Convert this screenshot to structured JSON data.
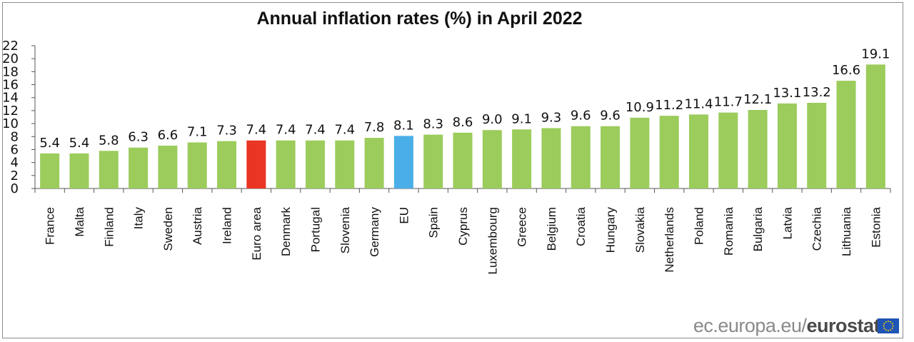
{
  "colors": {
    "default_bar": "#9ccc5c",
    "highlight_euro_area": "#ea3524",
    "highlight_eu": "#4aaee8",
    "axis": "#555555"
  },
  "chart_data": {
    "type": "bar",
    "title": "Annual inflation rates (%) in April 2022",
    "xlabel": "",
    "ylabel": "",
    "ylim": [
      0,
      22
    ],
    "yticks": [
      0,
      2,
      4,
      6,
      8,
      10,
      12,
      14,
      16,
      18,
      20,
      22
    ],
    "grid": false,
    "legend": "none",
    "categories": [
      "France",
      "Malta",
      "Finland",
      "Italy",
      "Sweden",
      "Austria",
      "Ireland",
      "Euro area",
      "Denmark",
      "Portugal",
      "Slovenia",
      "Germany",
      "EU",
      "Spain",
      "Cyprus",
      "Luxembourg",
      "Greece",
      "Belgium",
      "Croatia",
      "Hungary",
      "Slovakia",
      "Netherlands",
      "Poland",
      "Romania",
      "Bulgaria",
      "Latvia",
      "Czechia",
      "Lithuania",
      "Estonia"
    ],
    "values": [
      5.4,
      5.4,
      5.8,
      6.3,
      6.6,
      7.1,
      7.3,
      7.4,
      7.4,
      7.4,
      7.4,
      7.8,
      8.1,
      8.3,
      8.6,
      9.0,
      9.1,
      9.3,
      9.6,
      9.6,
      10.9,
      11.2,
      11.4,
      11.7,
      12.1,
      13.1,
      13.2,
      16.6,
      19.1
    ],
    "value_labels": [
      "5.4",
      "5.4",
      "5.8",
      "6.3",
      "6.6",
      "7.1",
      "7.3",
      "7.4",
      "7.4",
      "7.4",
      "7.4",
      "7.8",
      "8.1",
      "8.3",
      "8.6",
      "9.0",
      "9.1",
      "9.3",
      "9.6",
      "9.6",
      "10.9",
      "11.2",
      "11.4",
      "11.7",
      "12.1",
      "13.1",
      "13.2",
      "16.6",
      "19.1"
    ],
    "highlights": {
      "Euro area": "highlight_euro_area",
      "EU": "highlight_eu"
    }
  },
  "footer": {
    "source_prefix": "ec.europa.eu/",
    "source_brand": "eurostat"
  },
  "icons": {
    "eu_flag": "eu-flag-icon"
  }
}
